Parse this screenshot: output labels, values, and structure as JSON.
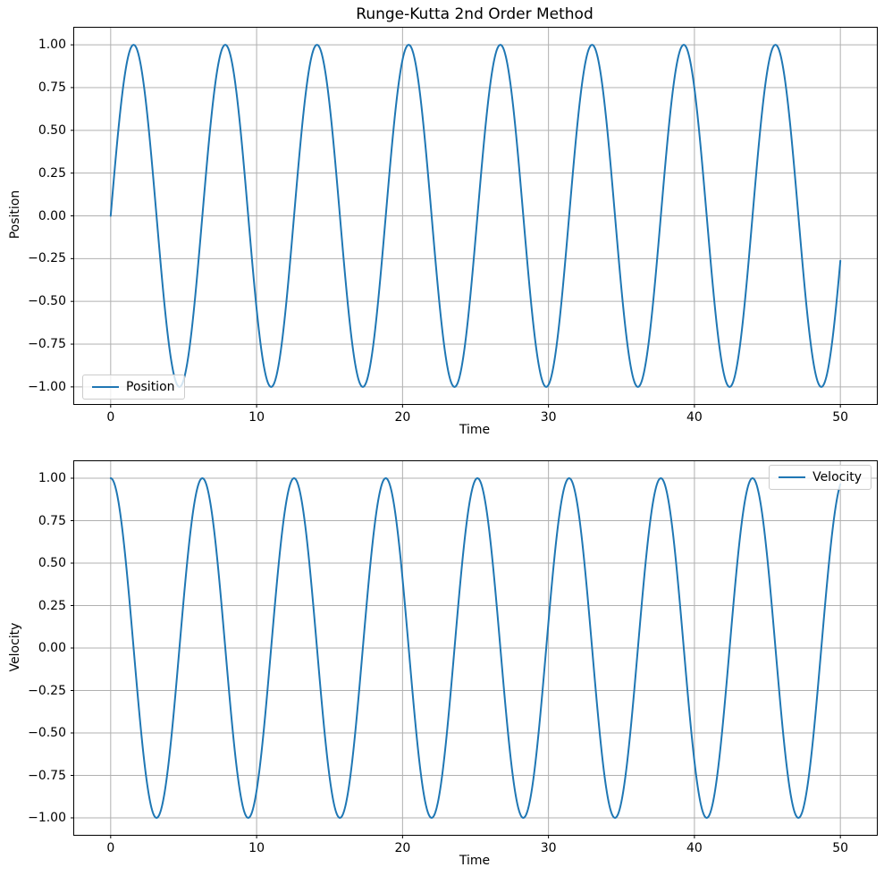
{
  "title": "Runge-Kutta 2nd Order Method",
  "colors": {
    "line": "#1f77b4",
    "grid": "#b0b0b0",
    "spine": "#000000",
    "background": "#ffffff",
    "legend_border": "#cccccc"
  },
  "chart_data": [
    {
      "type": "line",
      "subplot": "position",
      "title": "Runge-Kutta 2nd Order Method",
      "xlabel": "Time",
      "ylabel": "Position",
      "xlim": [
        -2.5,
        52.5
      ],
      "ylim": [
        -1.1,
        1.1
      ],
      "grid": true,
      "legend_position": "lower-left",
      "x_ticks": {
        "values": [
          0,
          10,
          20,
          30,
          40,
          50
        ],
        "labels": [
          "0",
          "10",
          "20",
          "30",
          "40",
          "50"
        ]
      },
      "y_ticks": {
        "values": [
          -1.0,
          -0.75,
          -0.5,
          -0.25,
          0.0,
          0.25,
          0.5,
          0.75,
          1.0
        ],
        "labels": [
          "−1.00",
          "−0.75",
          "−0.50",
          "−0.25",
          "0.00",
          "0.25",
          "0.50",
          "0.75",
          "1.00"
        ]
      },
      "series": [
        {
          "name": "Position",
          "formula": "sin",
          "amplitude": 1.0,
          "angular_frequency": 1.0,
          "phase": 0.0,
          "x_start": 0,
          "x_end": 50,
          "samples": 1200,
          "start_value": 0.0,
          "end_value": -0.26,
          "peak_value": 1.0,
          "trough_value": -1.0,
          "period": 6.2832
        }
      ]
    },
    {
      "type": "line",
      "subplot": "velocity",
      "title": "",
      "xlabel": "Time",
      "ylabel": "Velocity",
      "xlim": [
        -2.5,
        52.5
      ],
      "ylim": [
        -1.1,
        1.1
      ],
      "grid": true,
      "legend_position": "upper-right",
      "x_ticks": {
        "values": [
          0,
          10,
          20,
          30,
          40,
          50
        ],
        "labels": [
          "0",
          "10",
          "20",
          "30",
          "40",
          "50"
        ]
      },
      "y_ticks": {
        "values": [
          -1.0,
          -0.75,
          -0.5,
          -0.25,
          0.0,
          0.25,
          0.5,
          0.75,
          1.0
        ],
        "labels": [
          "−1.00",
          "−0.75",
          "−0.50",
          "−0.25",
          "0.00",
          "0.25",
          "0.50",
          "0.75",
          "1.00"
        ]
      },
      "series": [
        {
          "name": "Velocity",
          "formula": "cos",
          "amplitude": 1.0,
          "angular_frequency": 1.0,
          "phase": 0.0,
          "x_start": 0,
          "x_end": 50,
          "samples": 1200,
          "start_value": 1.0,
          "end_value": 0.96,
          "peak_value": 1.0,
          "trough_value": -1.0,
          "period": 6.2832
        }
      ]
    }
  ]
}
